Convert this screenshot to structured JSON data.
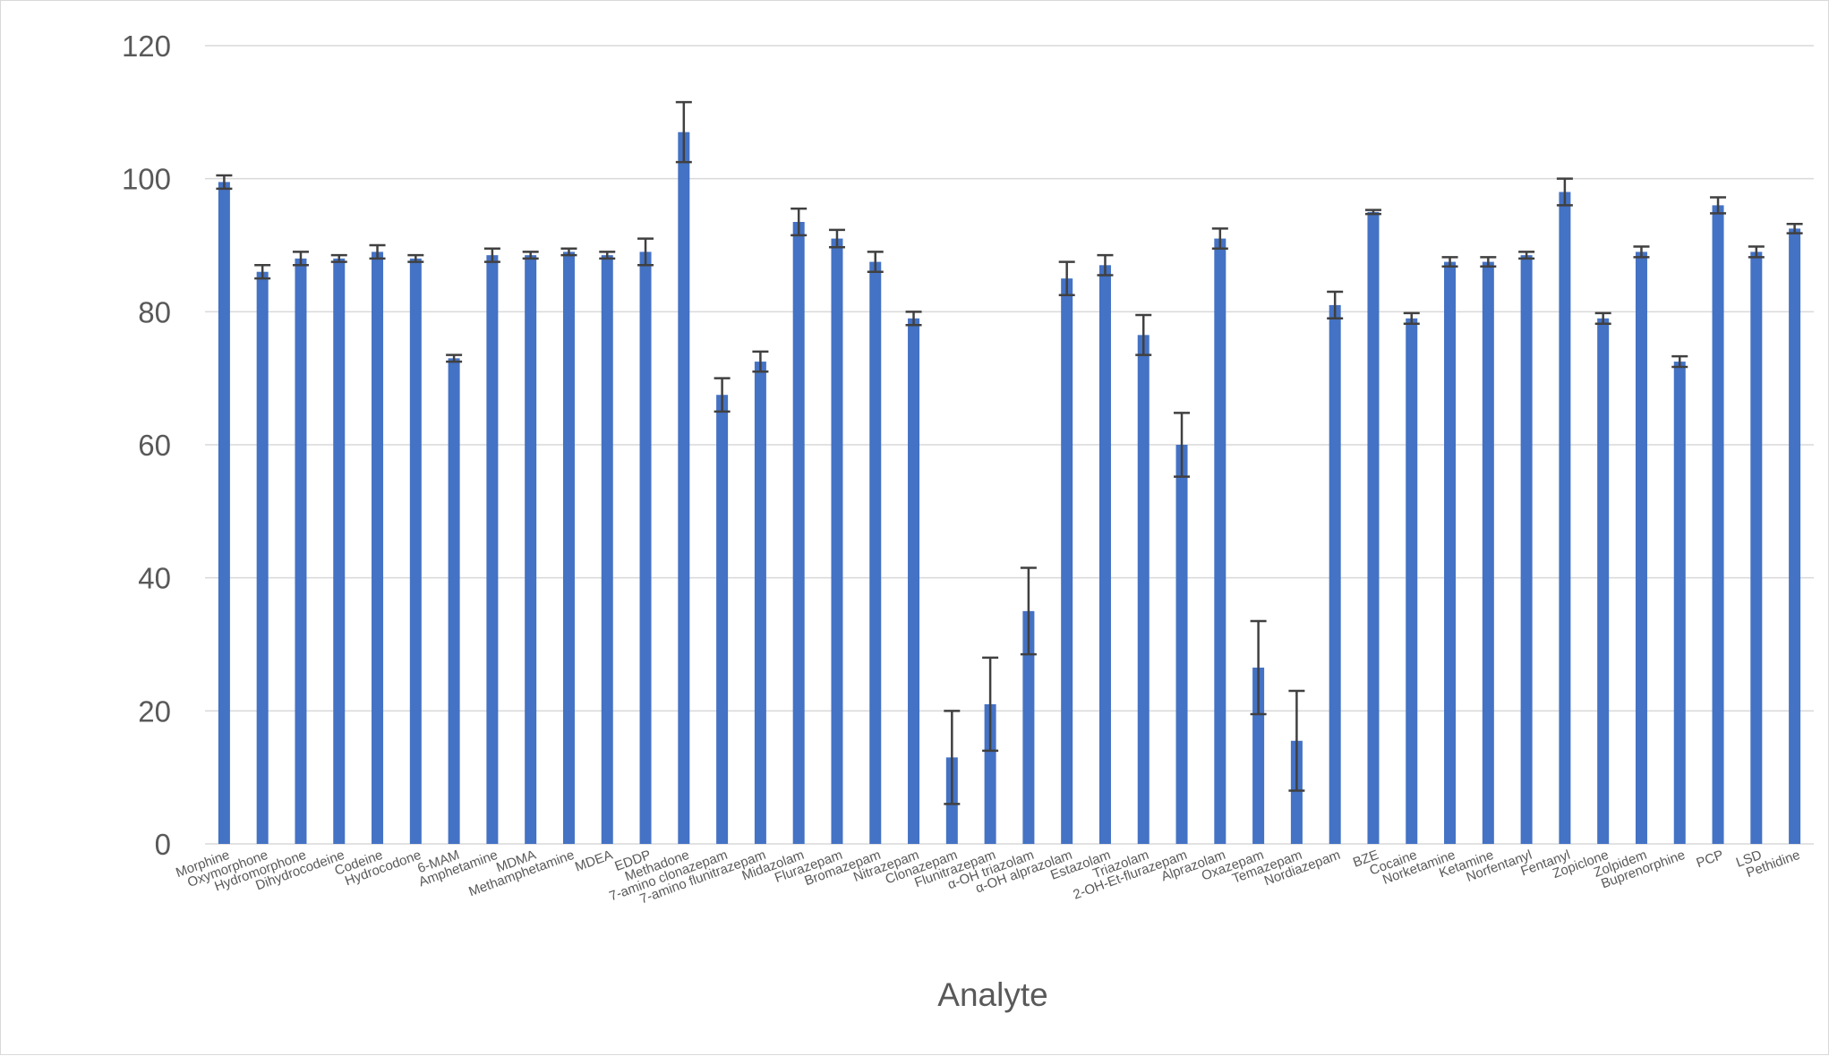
{
  "chart_data": {
    "type": "bar",
    "title": "",
    "xlabel": "Analyte",
    "ylabel": "",
    "ylim": [
      0,
      120
    ],
    "yticks": [
      0,
      20,
      40,
      60,
      80,
      100,
      120
    ],
    "grid": true,
    "legend": "none",
    "colors": {
      "bar": "#4472c4",
      "error_bar": "#404040",
      "grid": "#d9d9d9",
      "text": "#595959"
    },
    "categories": [
      "Morphine",
      "Oxymorphone",
      "Hydromorphone",
      "Dihydrocodeine",
      "Codeine",
      "Hydrocodone",
      "6-MAM",
      "Amphetamine",
      "MDMA",
      "Methamphetamine",
      "MDEA",
      "EDDP",
      "Methadone",
      "7-amino clonazepam",
      "7-amino flunitrazepam",
      "Midazolam",
      "Flurazepam",
      "Bromazepam",
      "Nitrazepam",
      "Clonazepam",
      "Flunitrazepam",
      "α-OH triazolam",
      "α-OH alprazolam",
      "Estazolam",
      "Triazolam",
      "2-OH-Et-flurazepam",
      "Alprazolam",
      "Oxazepam",
      "Temazepam",
      "Nordiazepam",
      "BZE",
      "Cocaine",
      "Norketamine",
      "Ketamine",
      "Norfentanyl",
      "Fentanyl",
      "Zopiclone",
      "Zolpidem",
      "Buprenorphine",
      "PCP",
      "LSD",
      "Pethidine"
    ],
    "values": [
      99.5,
      86,
      88,
      88,
      89,
      88,
      73,
      88.5,
      88.5,
      89,
      88.5,
      89,
      107,
      67.5,
      72.5,
      93.5,
      91,
      87.5,
      79,
      13,
      21,
      35,
      85,
      87,
      76.5,
      60,
      91,
      26.5,
      15.5,
      81,
      95,
      79,
      87.5,
      87.5,
      88.5,
      98,
      79,
      89,
      72.5,
      96,
      89,
      92.5
    ],
    "errors": [
      1,
      1,
      1,
      0.5,
      1,
      0.5,
      0.5,
      1,
      0.5,
      0.5,
      0.5,
      2,
      4.5,
      2.5,
      1.5,
      2,
      1.3,
      1.5,
      1,
      7,
      7,
      6.5,
      2.5,
      1.5,
      3,
      4.8,
      1.5,
      7,
      7.5,
      2,
      0.3,
      0.8,
      0.7,
      0.7,
      0.5,
      2,
      0.8,
      0.8,
      0.8,
      1.2,
      0.8,
      0.7
    ]
  }
}
